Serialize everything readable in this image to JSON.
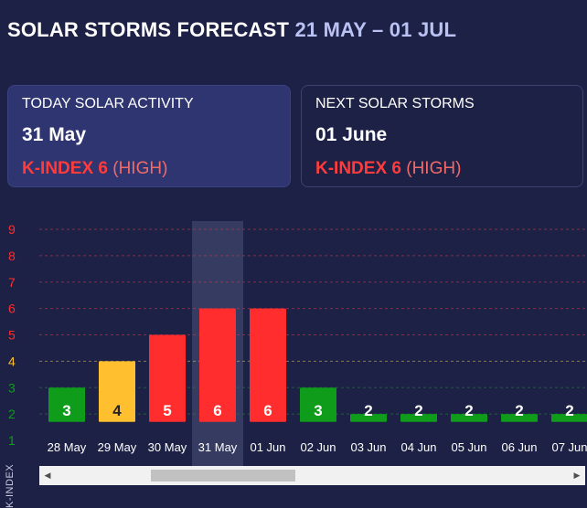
{
  "header": {
    "title": "SOLAR STORMS FORECAST",
    "range": "21 MAY – 01 JUL"
  },
  "today": {
    "label": "TODAY SOLAR ACTIVITY",
    "date": "31 May",
    "kindex": "K-INDEX 6",
    "level": "(HIGH)"
  },
  "next": {
    "label": "NEXT SOLAR STORMS",
    "date": "01 June",
    "kindex": "K-INDEX 6",
    "level": "(HIGH)"
  },
  "colors": {
    "background": "#1d2146",
    "low": "#0e9c1a",
    "moderate": "#ffbf2e",
    "high": "#ff2d2d",
    "highlight_band": "#3a3f66"
  },
  "chart_data": {
    "type": "bar",
    "title": "SOLAR STORMS FORECAST",
    "ylabel": "K-INDEX",
    "ylim": [
      1,
      9
    ],
    "yticks": [
      1,
      2,
      3,
      4,
      5,
      6,
      7,
      8,
      9
    ],
    "ytick_colors": {
      "1": "#0e9c1a",
      "2": "#0e9c1a",
      "3": "#0e9c1a",
      "4": "#ffbf2e",
      "5": "#ff2d2d",
      "6": "#ff2d2d",
      "7": "#ff2d2d",
      "8": "#ff2d2d",
      "9": "#ff2d2d"
    },
    "categories": [
      "28 May",
      "29 May",
      "30 May",
      "31 May",
      "01 Jun",
      "02 Jun",
      "03 Jun",
      "04 Jun",
      "05 Jun",
      "06 Jun",
      "07 Jun"
    ],
    "values": [
      3,
      4,
      5,
      6,
      6,
      3,
      2,
      2,
      2,
      2,
      2
    ],
    "bar_colors": [
      "#0e9c1a",
      "#ffbf2e",
      "#ff2d2d",
      "#ff2d2d",
      "#ff2d2d",
      "#0e9c1a",
      "#0e9c1a",
      "#0e9c1a",
      "#0e9c1a",
      "#0e9c1a",
      "#0e9c1a"
    ],
    "highlighted_category": "31 May",
    "grid": true
  }
}
